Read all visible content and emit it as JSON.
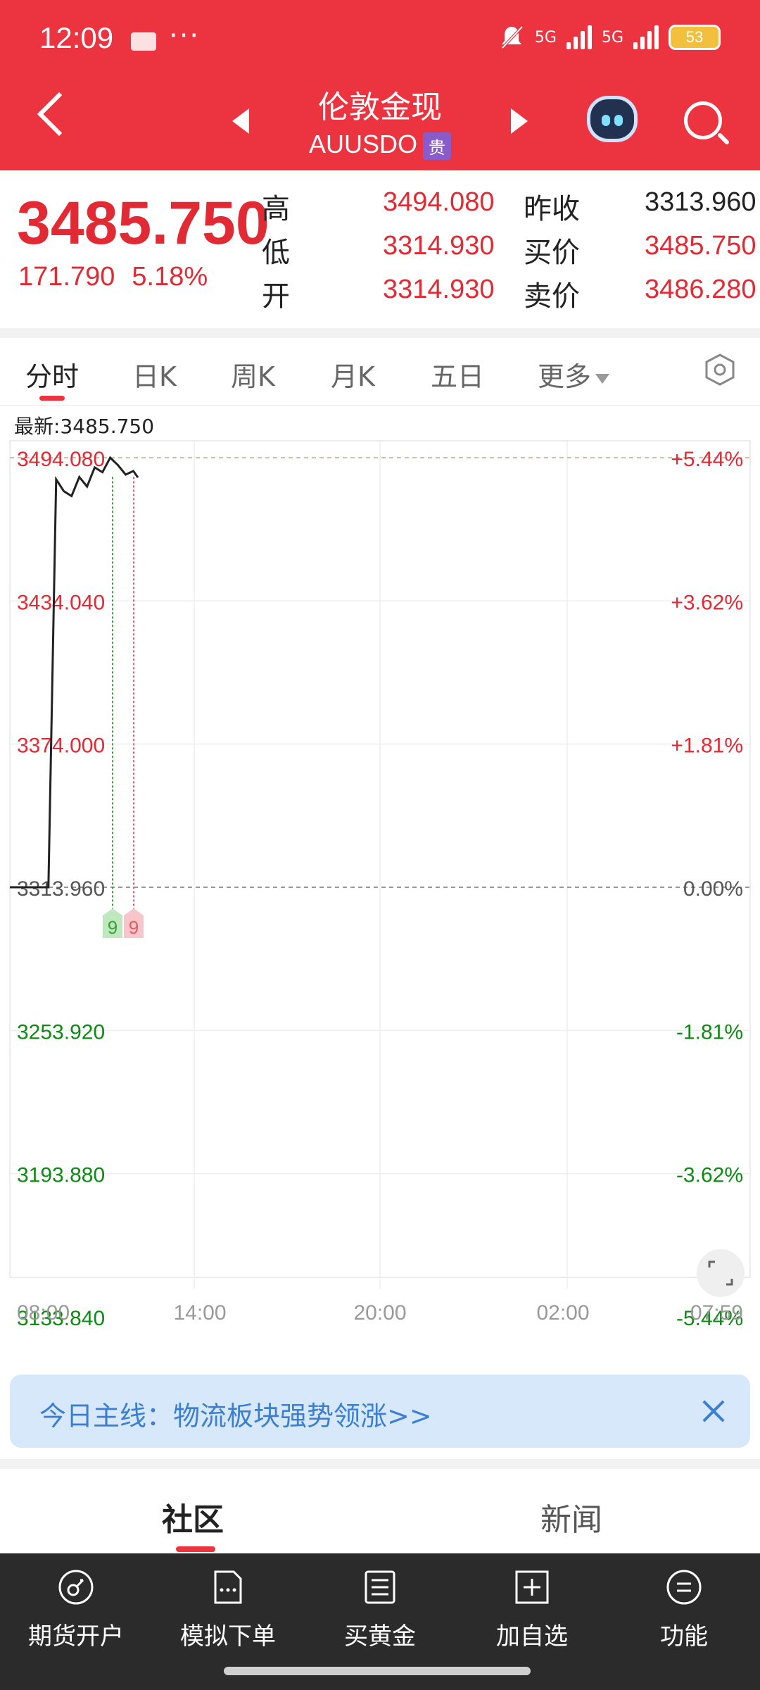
{
  "status_bar": {
    "time": "12:09",
    "more": "···",
    "network_1": "5G",
    "network_2": "5G",
    "battery": "53"
  },
  "header": {
    "title": "伦敦金现",
    "symbol": "AUUSDO",
    "badge": "贵",
    "icons": [
      "back-icon",
      "prev-arrow-icon",
      "next-arrow-icon",
      "robot-assistant-icon",
      "search-icon"
    ]
  },
  "quote": {
    "price": "3485.750",
    "change": "171.790",
    "change_pct": "5.18%",
    "stats": [
      {
        "label": "高",
        "value": "3494.080"
      },
      {
        "label": "低",
        "value": "3314.930"
      },
      {
        "label": "开",
        "value": "3314.930"
      },
      {
        "label": "昨收",
        "value": "3313.960"
      },
      {
        "label": "买价",
        "value": "3485.750"
      },
      {
        "label": "卖价",
        "value": "3486.280"
      }
    ]
  },
  "tabs": [
    "分时",
    "日K",
    "周K",
    "月K",
    "五日",
    "更多"
  ],
  "chart_data": {
    "type": "line",
    "latest_label": "最新:3485.750",
    "y_ticks_left": [
      "3494.080",
      "3434.040",
      "3374.000",
      "3313.960",
      "3253.920",
      "3193.880",
      "3133.840"
    ],
    "y_ticks_right": [
      "+5.44%",
      "+3.62%",
      "+1.81%",
      "0.00%",
      "-1.81%",
      "-3.62%",
      "-5.44%"
    ],
    "x_ticks": [
      "08:00",
      "14:00",
      "20:00",
      "02:00",
      "07:59"
    ],
    "ylim": [
      3133.84,
      3494.08
    ],
    "x": [
      "08:00",
      "09:15",
      "09:30",
      "09:45",
      "10:00",
      "10:15",
      "10:30",
      "10:45",
      "11:00",
      "11:15",
      "11:30",
      "11:45",
      "12:00",
      "12:09"
    ],
    "values": [
      3313.96,
      3313.96,
      3485.0,
      3480.0,
      3478.0,
      3486.0,
      3482.0,
      3490.0,
      3488.0,
      3494.08,
      3491.0,
      3487.0,
      3488.5,
      3485.75
    ],
    "markers": [
      {
        "label": "9",
        "color": "#3aa13a"
      },
      {
        "label": "9",
        "color": "#e25b65"
      }
    ],
    "colors": {
      "up": "#e22a34",
      "down": "#0f8a14",
      "line": "#222222"
    }
  },
  "banner": {
    "text": "今日主线：物流板块强势领涨>>"
  },
  "section_tabs": [
    "社区",
    "新闻"
  ],
  "bottom_nav": [
    {
      "label": "期货开户",
      "icon": "account-open-icon"
    },
    {
      "label": "模拟下单",
      "icon": "simulated-order-icon"
    },
    {
      "label": "买黄金",
      "icon": "buy-gold-icon"
    },
    {
      "label": "加自选",
      "icon": "add-watchlist-icon"
    },
    {
      "label": "功能",
      "icon": "menu-functions-icon"
    }
  ]
}
